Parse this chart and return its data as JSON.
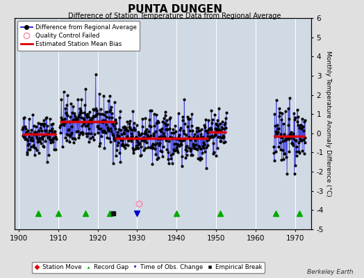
{
  "title": "PUNTA DUNGEN",
  "subtitle": "Difference of Station Temperature Data from Regional Average",
  "ylabel_right": "Monthly Temperature Anomaly Difference (°C)",
  "xlim": [
    1899,
    1974
  ],
  "ylim": [
    -5,
    6
  ],
  "yticks": [
    -5,
    -4,
    -3,
    -2,
    -1,
    0,
    1,
    2,
    3,
    4,
    5,
    6
  ],
  "xticks": [
    1900,
    1910,
    1920,
    1930,
    1940,
    1950,
    1960,
    1970
  ],
  "bg_color": "#e0e0e0",
  "plot_bg_color": "#d0dae4",
  "grid_color": "#ffffff",
  "watermark": "Berkeley Earth",
  "segments": [
    {
      "xstart": 1901.0,
      "xend": 1909.5,
      "bias": -0.05
    },
    {
      "xstart": 1910.5,
      "xend": 1924.5,
      "bias": 0.6
    },
    {
      "xstart": 1924.5,
      "xend": 1948.0,
      "bias": -0.25
    },
    {
      "xstart": 1948.0,
      "xend": 1952.5,
      "bias": 0.05
    },
    {
      "xstart": 1964.5,
      "xend": 1972.5,
      "bias": -0.15
    }
  ],
  "record_gaps": [
    1905,
    1910,
    1917,
    1923,
    1940,
    1951,
    1965,
    1971
  ],
  "empirical_breaks": [
    1924
  ],
  "time_obs_changes": [
    1930
  ],
  "qc_failed_x": 1930.5,
  "qc_failed_y": -3.65,
  "station_moves": [],
  "seed": 42,
  "main_periods": [
    {
      "start": 1901.0,
      "end": 1909.5,
      "n": 102,
      "mean": -0.05,
      "std": 0.55
    },
    {
      "start": 1910.5,
      "end": 1924.5,
      "n": 168,
      "mean": 0.55,
      "std": 0.65
    },
    {
      "start": 1924.5,
      "end": 1948.0,
      "n": 282,
      "mean": -0.22,
      "std": 0.65
    },
    {
      "start": 1948.0,
      "end": 1952.5,
      "n": 54,
      "mean": 0.05,
      "std": 0.55
    },
    {
      "start": 1964.5,
      "end": 1972.5,
      "n": 96,
      "mean": -0.1,
      "std": 0.75
    }
  ],
  "marker_y": -4.15,
  "stem_color": "#aaaaff",
  "line_color": "#0000cc",
  "dot_color": "#000000",
  "bias_color": "#dd0000",
  "gap_color": "#00aa00",
  "obs_color": "#0000cc",
  "break_color": "#111111",
  "move_color": "#dd0000",
  "qc_color": "#ff88aa"
}
